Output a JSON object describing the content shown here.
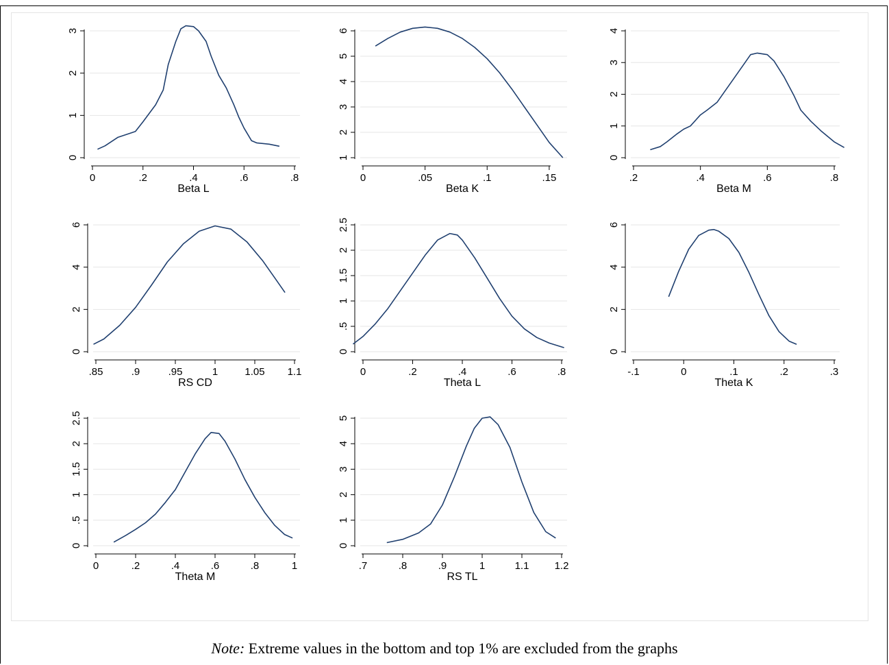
{
  "note": {
    "label": "Note:",
    "text": " Extreme values in the bottom and top 1% are excluded from the graphs"
  },
  "colors": {
    "line": "#1f3f6f",
    "grid": "#e6e6e6",
    "axis": "#000000"
  },
  "chart_data": [
    {
      "type": "line",
      "xlabel": "Beta L",
      "ylabel": "",
      "xlim": [
        0,
        0.8
      ],
      "ylim": [
        0,
        3
      ],
      "xticks": [
        0,
        0.2,
        0.4,
        0.6,
        0.8
      ],
      "xtick_labels": [
        "0",
        ".2",
        ".4",
        ".6",
        ".8"
      ],
      "yticks": [
        0,
        1,
        2,
        3
      ],
      "ytick_labels": [
        "0",
        "1",
        "2",
        "3"
      ],
      "x": [
        0.02,
        0.05,
        0.1,
        0.15,
        0.17,
        0.2,
        0.25,
        0.28,
        0.3,
        0.33,
        0.35,
        0.37,
        0.4,
        0.42,
        0.45,
        0.47,
        0.5,
        0.53,
        0.56,
        0.58,
        0.6,
        0.63,
        0.65,
        0.7,
        0.74
      ],
      "y": [
        0.2,
        0.28,
        0.48,
        0.58,
        0.62,
        0.85,
        1.25,
        1.6,
        2.2,
        2.75,
        3.05,
        3.12,
        3.1,
        3.0,
        2.75,
        2.4,
        1.95,
        1.65,
        1.25,
        0.95,
        0.7,
        0.4,
        0.35,
        0.32,
        0.27
      ]
    },
    {
      "type": "line",
      "xlabel": "Beta K",
      "ylabel": "",
      "xlim": [
        0,
        0.16
      ],
      "ylim": [
        1,
        6
      ],
      "xticks": [
        0,
        0.05,
        0.1,
        0.15
      ],
      "xtick_labels": [
        "0",
        ".05",
        ".1",
        ".15"
      ],
      "yticks": [
        1,
        2,
        3,
        4,
        5,
        6
      ],
      "ytick_labels": [
        "1",
        "2",
        "3",
        "4",
        "5",
        "6"
      ],
      "x": [
        0.01,
        0.02,
        0.03,
        0.04,
        0.05,
        0.06,
        0.07,
        0.08,
        0.09,
        0.1,
        0.11,
        0.12,
        0.13,
        0.14,
        0.15,
        0.161
      ],
      "y": [
        5.4,
        5.7,
        5.95,
        6.1,
        6.15,
        6.1,
        5.95,
        5.7,
        5.35,
        4.9,
        4.35,
        3.7,
        3.0,
        2.3,
        1.6,
        1.0
      ]
    },
    {
      "type": "line",
      "xlabel": "Beta M",
      "ylabel": "",
      "xlim": [
        0.2,
        0.8
      ],
      "ylim": [
        0,
        4
      ],
      "xticks": [
        0.2,
        0.4,
        0.6,
        0.8
      ],
      "xtick_labels": [
        ".2",
        ".4",
        ".6",
        ".8"
      ],
      "yticks": [
        0,
        1,
        2,
        3,
        4
      ],
      "ytick_labels": [
        "0",
        "1",
        "2",
        "3",
        "4"
      ],
      "x": [
        0.25,
        0.28,
        0.3,
        0.33,
        0.35,
        0.37,
        0.4,
        0.42,
        0.45,
        0.48,
        0.5,
        0.53,
        0.55,
        0.57,
        0.6,
        0.62,
        0.65,
        0.68,
        0.7,
        0.73,
        0.76,
        0.8,
        0.83
      ],
      "y": [
        0.25,
        0.35,
        0.5,
        0.75,
        0.9,
        1.0,
        1.35,
        1.5,
        1.75,
        2.2,
        2.5,
        2.95,
        3.25,
        3.3,
        3.25,
        3.05,
        2.55,
        1.95,
        1.5,
        1.15,
        0.85,
        0.5,
        0.32
      ]
    },
    {
      "type": "line",
      "xlabel": "RS CD",
      "ylabel": "",
      "xlim": [
        0.85,
        1.1
      ],
      "ylim": [
        0,
        6
      ],
      "xticks": [
        0.85,
        0.9,
        0.95,
        1,
        1.05,
        1.1
      ],
      "xtick_labels": [
        ".85",
        ".9",
        ".95",
        "1",
        "1.05",
        "1.1"
      ],
      "yticks": [
        0,
        2,
        4,
        6
      ],
      "ytick_labels": [
        "0",
        "2",
        "4",
        "6"
      ],
      "x": [
        0.847,
        0.86,
        0.88,
        0.9,
        0.92,
        0.94,
        0.96,
        0.98,
        1.0,
        1.02,
        1.04,
        1.06,
        1.075,
        1.088
      ],
      "y": [
        0.35,
        0.6,
        1.25,
        2.1,
        3.15,
        4.25,
        5.1,
        5.7,
        5.95,
        5.8,
        5.2,
        4.3,
        3.5,
        2.8
      ]
    },
    {
      "type": "line",
      "xlabel": "Theta L",
      "ylabel": "",
      "xlim": [
        0,
        0.8
      ],
      "ylim": [
        0,
        2.5
      ],
      "xticks": [
        0,
        0.2,
        0.4,
        0.6,
        0.8
      ],
      "xtick_labels": [
        "0",
        ".2",
        ".4",
        ".6",
        ".8"
      ],
      "yticks": [
        0,
        0.5,
        1,
        1.5,
        2,
        2.5
      ],
      "ytick_labels": [
        "0",
        ".5",
        "1",
        "1.5",
        "2",
        "2.5"
      ],
      "x": [
        -0.04,
        0.0,
        0.05,
        0.1,
        0.15,
        0.2,
        0.25,
        0.3,
        0.35,
        0.38,
        0.4,
        0.45,
        0.5,
        0.55,
        0.6,
        0.65,
        0.7,
        0.75,
        0.81
      ],
      "y": [
        0.15,
        0.3,
        0.55,
        0.85,
        1.2,
        1.55,
        1.9,
        2.2,
        2.33,
        2.3,
        2.2,
        1.85,
        1.45,
        1.05,
        0.7,
        0.45,
        0.28,
        0.17,
        0.08
      ]
    },
    {
      "type": "line",
      "xlabel": "Theta K",
      "ylabel": "",
      "xlim": [
        -0.1,
        0.3
      ],
      "ylim": [
        0,
        6
      ],
      "xticks": [
        -0.1,
        0,
        0.1,
        0.2,
        0.3
      ],
      "xtick_labels": [
        "-.1",
        "0",
        ".1",
        ".2",
        ".3"
      ],
      "yticks": [
        0,
        2,
        4,
        6
      ],
      "ytick_labels": [
        "0",
        "2",
        "4",
        "6"
      ],
      "x": [
        -0.03,
        -0.01,
        0.01,
        0.03,
        0.05,
        0.06,
        0.07,
        0.09,
        0.11,
        0.13,
        0.15,
        0.17,
        0.19,
        0.21,
        0.225
      ],
      "y": [
        2.6,
        3.8,
        4.85,
        5.5,
        5.75,
        5.78,
        5.7,
        5.35,
        4.7,
        3.75,
        2.7,
        1.7,
        0.95,
        0.5,
        0.35
      ]
    },
    {
      "type": "line",
      "xlabel": "Theta M",
      "ylabel": "",
      "xlim": [
        0,
        1
      ],
      "ylim": [
        0,
        2.5
      ],
      "xticks": [
        0,
        0.2,
        0.4,
        0.6,
        0.8,
        1
      ],
      "xtick_labels": [
        "0",
        ".2",
        ".4",
        ".6",
        ".8",
        "1"
      ],
      "yticks": [
        0,
        0.5,
        1,
        1.5,
        2,
        2.5
      ],
      "ytick_labels": [
        "0",
        ".5",
        "1",
        "1.5",
        "2",
        "2.5"
      ],
      "x": [
        0.09,
        0.15,
        0.2,
        0.25,
        0.3,
        0.35,
        0.4,
        0.45,
        0.5,
        0.55,
        0.58,
        0.62,
        0.65,
        0.7,
        0.75,
        0.8,
        0.85,
        0.9,
        0.95,
        0.99
      ],
      "y": [
        0.07,
        0.2,
        0.32,
        0.45,
        0.62,
        0.85,
        1.1,
        1.45,
        1.8,
        2.1,
        2.22,
        2.2,
        2.05,
        1.7,
        1.3,
        0.95,
        0.65,
        0.4,
        0.22,
        0.15
      ]
    },
    {
      "type": "line",
      "xlabel": "RS TL",
      "ylabel": "",
      "xlim": [
        0.7,
        1.2
      ],
      "ylim": [
        0,
        5
      ],
      "xticks": [
        0.7,
        0.8,
        0.9,
        1,
        1.1,
        1.2
      ],
      "xtick_labels": [
        ".7",
        ".8",
        ".9",
        "1",
        "1.1",
        "1.2"
      ],
      "yticks": [
        0,
        1,
        2,
        3,
        4,
        5
      ],
      "ytick_labels": [
        "0",
        "1",
        "2",
        "3",
        "4",
        "5"
      ],
      "x": [
        0.76,
        0.8,
        0.84,
        0.87,
        0.9,
        0.93,
        0.96,
        0.98,
        1.0,
        1.02,
        1.04,
        1.07,
        1.1,
        1.13,
        1.16,
        1.185
      ],
      "y": [
        0.12,
        0.25,
        0.5,
        0.85,
        1.6,
        2.7,
        3.9,
        4.6,
        5.0,
        5.05,
        4.75,
        3.85,
        2.5,
        1.3,
        0.55,
        0.3
      ]
    }
  ]
}
